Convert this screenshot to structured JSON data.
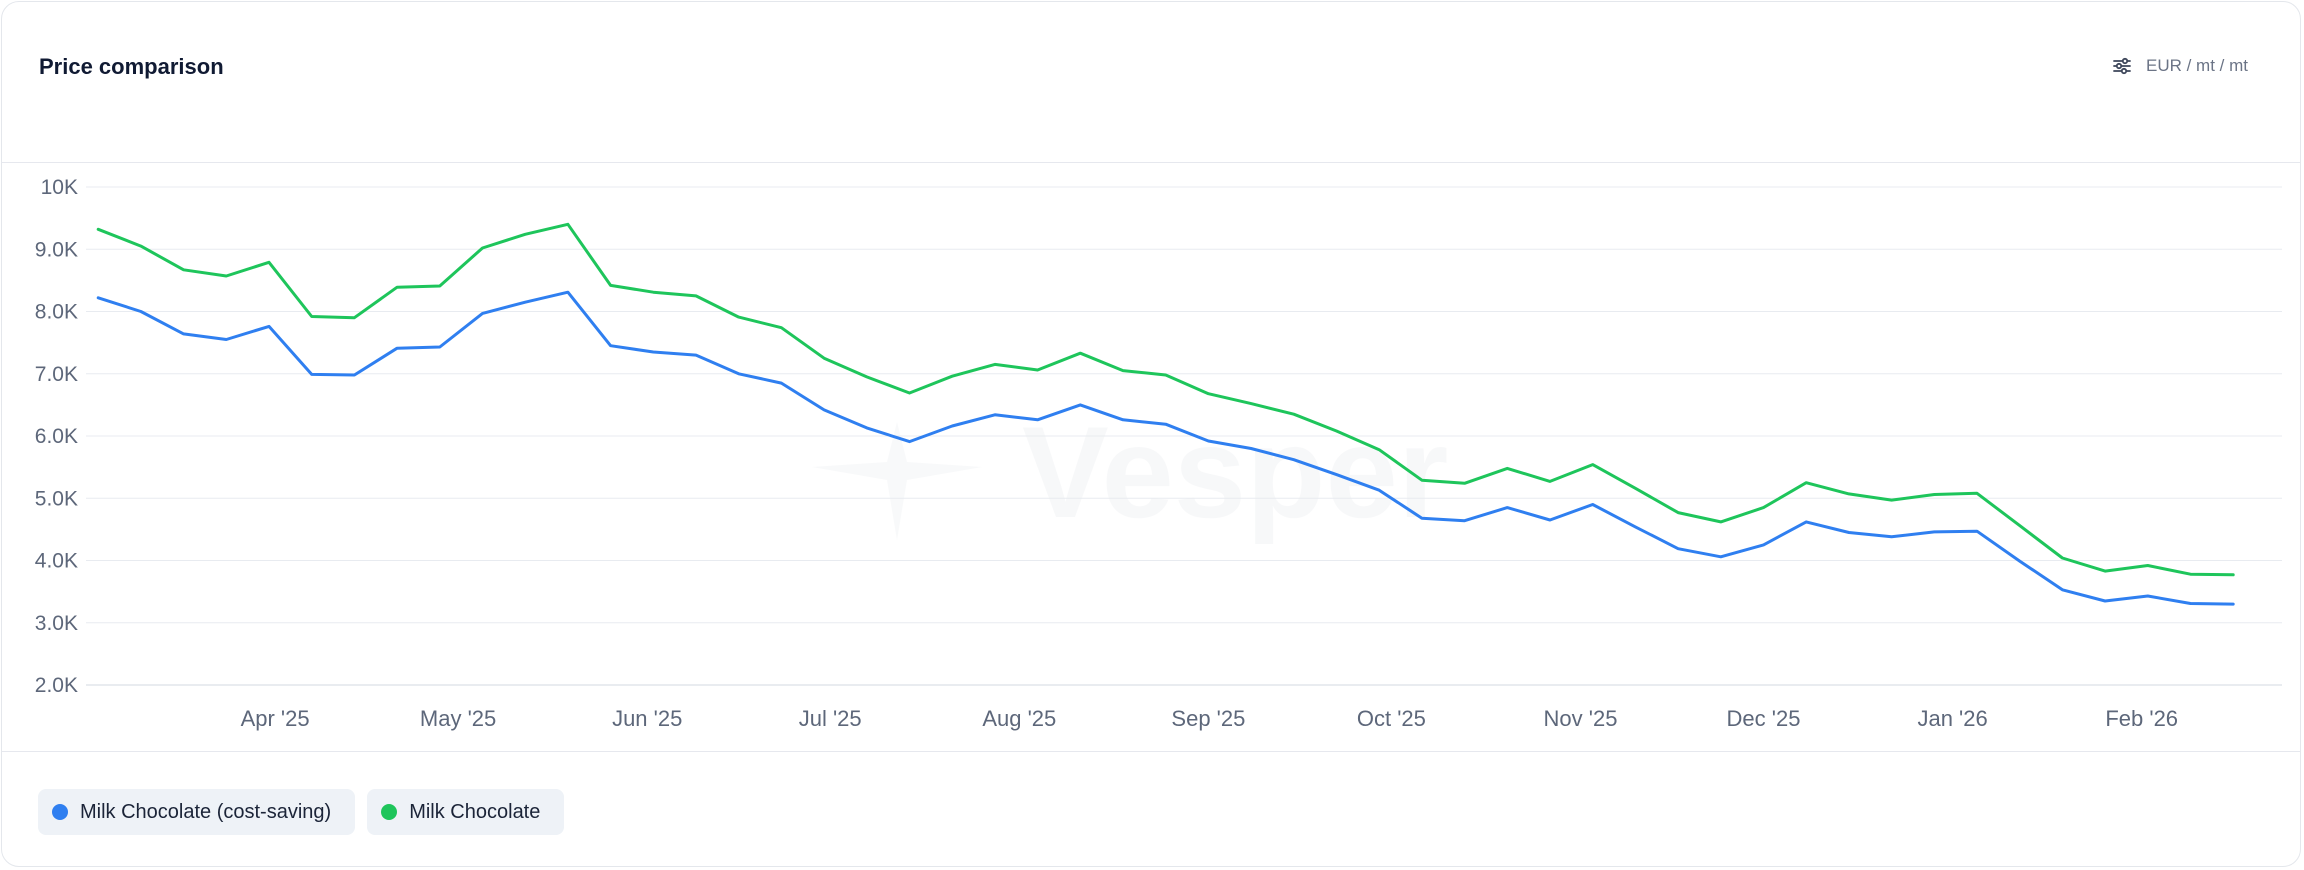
{
  "header": {
    "title": "Price comparison",
    "units_label": "EUR / mt / mt",
    "units_icon": "sliders-icon"
  },
  "legend": {
    "items": [
      {
        "label": "Milk Chocolate (cost-saving)",
        "color": "#2f7ff0"
      },
      {
        "label": "Milk Chocolate",
        "color": "#1ec55b"
      }
    ]
  },
  "watermark": "Vesper",
  "chart_data": {
    "type": "line",
    "title": "Price comparison",
    "xlabel": "",
    "ylabel": "",
    "ylim": [
      2000,
      10000
    ],
    "y_ticks": [
      {
        "value": 10000,
        "label": "10K"
      },
      {
        "value": 9000,
        "label": "9.0K"
      },
      {
        "value": 8000,
        "label": "8.0K"
      },
      {
        "value": 7000,
        "label": "7.0K"
      },
      {
        "value": 6000,
        "label": "6.0K"
      },
      {
        "value": 5000,
        "label": "5.0K"
      },
      {
        "value": 4000,
        "label": "4.0K"
      },
      {
        "value": 3000,
        "label": "3.0K"
      },
      {
        "value": 2000,
        "label": "2.0K"
      }
    ],
    "x_range": [
      "2025-03-01",
      "2026-02-24"
    ],
    "x_ticks": [
      {
        "date": "2025-04-01",
        "label": "Apr '25"
      },
      {
        "date": "2025-05-01",
        "label": "May '25"
      },
      {
        "date": "2025-06-01",
        "label": "Jun '25"
      },
      {
        "date": "2025-07-01",
        "label": "Jul '25"
      },
      {
        "date": "2025-08-01",
        "label": "Aug '25"
      },
      {
        "date": "2025-09-01",
        "label": "Sep '25"
      },
      {
        "date": "2025-10-01",
        "label": "Oct '25"
      },
      {
        "date": "2025-11-01",
        "label": "Nov '25"
      },
      {
        "date": "2025-12-01",
        "label": "Dec '25"
      },
      {
        "date": "2026-01-01",
        "label": "Jan '26"
      },
      {
        "date": "2026-02-01",
        "label": "Feb '26"
      }
    ],
    "grid": true,
    "legend_position": "bottom-left",
    "dates": [
      "2025-03-03",
      "2025-03-10",
      "2025-03-17",
      "2025-03-24",
      "2025-03-31",
      "2025-04-07",
      "2025-04-14",
      "2025-04-21",
      "2025-04-28",
      "2025-05-05",
      "2025-05-12",
      "2025-05-19",
      "2025-05-26",
      "2025-06-02",
      "2025-06-09",
      "2025-06-16",
      "2025-06-23",
      "2025-06-30",
      "2025-07-07",
      "2025-07-14",
      "2025-07-21",
      "2025-07-28",
      "2025-08-04",
      "2025-08-11",
      "2025-08-18",
      "2025-08-25",
      "2025-09-01",
      "2025-09-08",
      "2025-09-15",
      "2025-09-22",
      "2025-09-29",
      "2025-10-06",
      "2025-10-13",
      "2025-10-20",
      "2025-10-27",
      "2025-11-03",
      "2025-11-10",
      "2025-11-17",
      "2025-11-24",
      "2025-12-01",
      "2025-12-08",
      "2025-12-15",
      "2025-12-22",
      "2025-12-29",
      "2026-01-05",
      "2026-01-12",
      "2026-01-19",
      "2026-01-26",
      "2026-02-02",
      "2026-02-09",
      "2026-02-16"
    ],
    "series": [
      {
        "name": "Milk Chocolate (cost-saving)",
        "color": "#2f7ff0",
        "values": [
          8220,
          8000,
          7640,
          7550,
          7760,
          6990,
          6980,
          7410,
          7430,
          7970,
          8150,
          8310,
          7450,
          7350,
          7300,
          7000,
          6850,
          6420,
          6130,
          5910,
          6160,
          6340,
          6260,
          6500,
          6260,
          6190,
          5920,
          5800,
          5620,
          5380,
          5130,
          4680,
          4640,
          4850,
          4650,
          4900,
          4540,
          4190,
          4060,
          4250,
          4620,
          4450,
          4380,
          4460,
          4470,
          3990,
          3530,
          3350,
          3430,
          3310,
          3300
        ]
      },
      {
        "name": "Milk Chocolate",
        "color": "#1ec55b",
        "values": [
          9320,
          9050,
          8670,
          8570,
          8790,
          7920,
          7900,
          8390,
          8410,
          9020,
          9240,
          9400,
          8420,
          8310,
          8250,
          7910,
          7740,
          7250,
          6950,
          6690,
          6960,
          7150,
          7060,
          7330,
          7050,
          6980,
          6680,
          6520,
          6350,
          6080,
          5780,
          5290,
          5240,
          5480,
          5270,
          5540,
          5160,
          4770,
          4620,
          4850,
          5250,
          5070,
          4970,
          5060,
          5080,
          4560,
          4040,
          3830,
          3920,
          3780,
          3770
        ]
      }
    ]
  }
}
